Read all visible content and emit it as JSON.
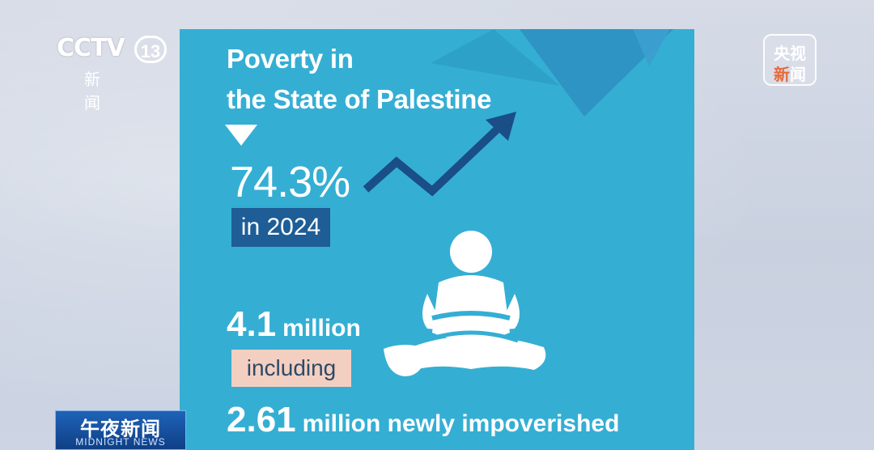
{
  "broadcast": {
    "channel_logo_text": "CCTV",
    "channel_number": "13",
    "channel_subtitle": "新闻",
    "badge_top": "央视",
    "badge_bottom_1": "新",
    "badge_bottom_2": "闻",
    "program_title": "午夜新闻",
    "program_subtitle": "MIDNIGHT NEWS"
  },
  "infographic": {
    "title_line1": "Poverty in",
    "title_line2": "the State of Palestine",
    "poverty_rate": "74.3%",
    "year_label": "in 2024",
    "total_number": "4.1",
    "total_unit": "million",
    "including_label": "including",
    "newly_number": "2.61",
    "newly_text": "million newly impoverished"
  },
  "icons": [
    "down-triangle-icon",
    "trend-up-arrow-icon",
    "seated-person-with-bowl-icon"
  ],
  "colors": {
    "panel_bg": "#35aed4",
    "dark_blue": "#1e5d96",
    "arrow_blue": "#1a4e86",
    "including_bg": "#f3cfc1"
  }
}
